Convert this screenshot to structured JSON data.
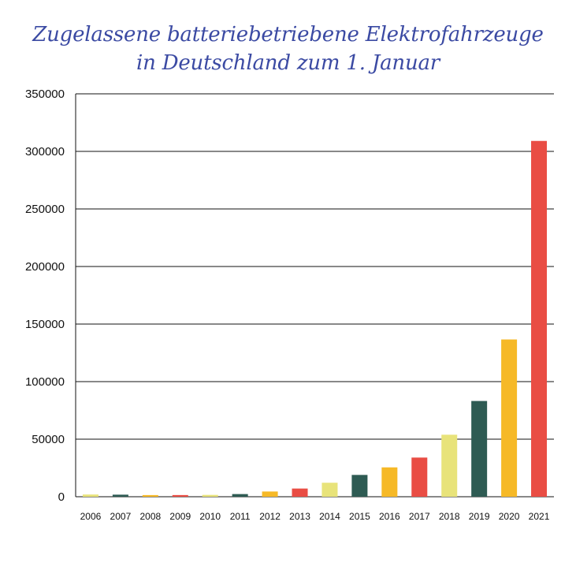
{
  "chart_data": {
    "type": "bar",
    "title_line1": "Zugelassene batteriebetriebene Elektrofahrzeuge",
    "title_line2": "in Deutschland zum 1. Januar",
    "xlabel": "",
    "ylabel": "",
    "ylim": [
      0,
      350000
    ],
    "yticks": [
      "0",
      "50000",
      "100000",
      "150000",
      "200000",
      "250000",
      "300000",
      "350000"
    ],
    "grid": true,
    "categories": [
      "2006",
      "2007",
      "2008",
      "2009",
      "2010",
      "2011",
      "2012",
      "2013",
      "2014",
      "2015",
      "2016",
      "2017",
      "2018",
      "2019",
      "2020",
      "2021"
    ],
    "values": [
      1931,
      1790,
      1436,
      1452,
      1588,
      2307,
      4541,
      7114,
      12156,
      18948,
      25502,
      34022,
      53861,
      83175,
      136617,
      309083
    ],
    "colors": [
      "#e8e37a",
      "#2e5b53",
      "#f6b927",
      "#e94d44",
      "#e8e37a",
      "#2e5b53",
      "#f6b927",
      "#e94d44",
      "#e8e37a",
      "#2e5b53",
      "#f6b927",
      "#e94d44",
      "#e8e37a",
      "#2e5b53",
      "#f6b927",
      "#e94d44"
    ]
  }
}
